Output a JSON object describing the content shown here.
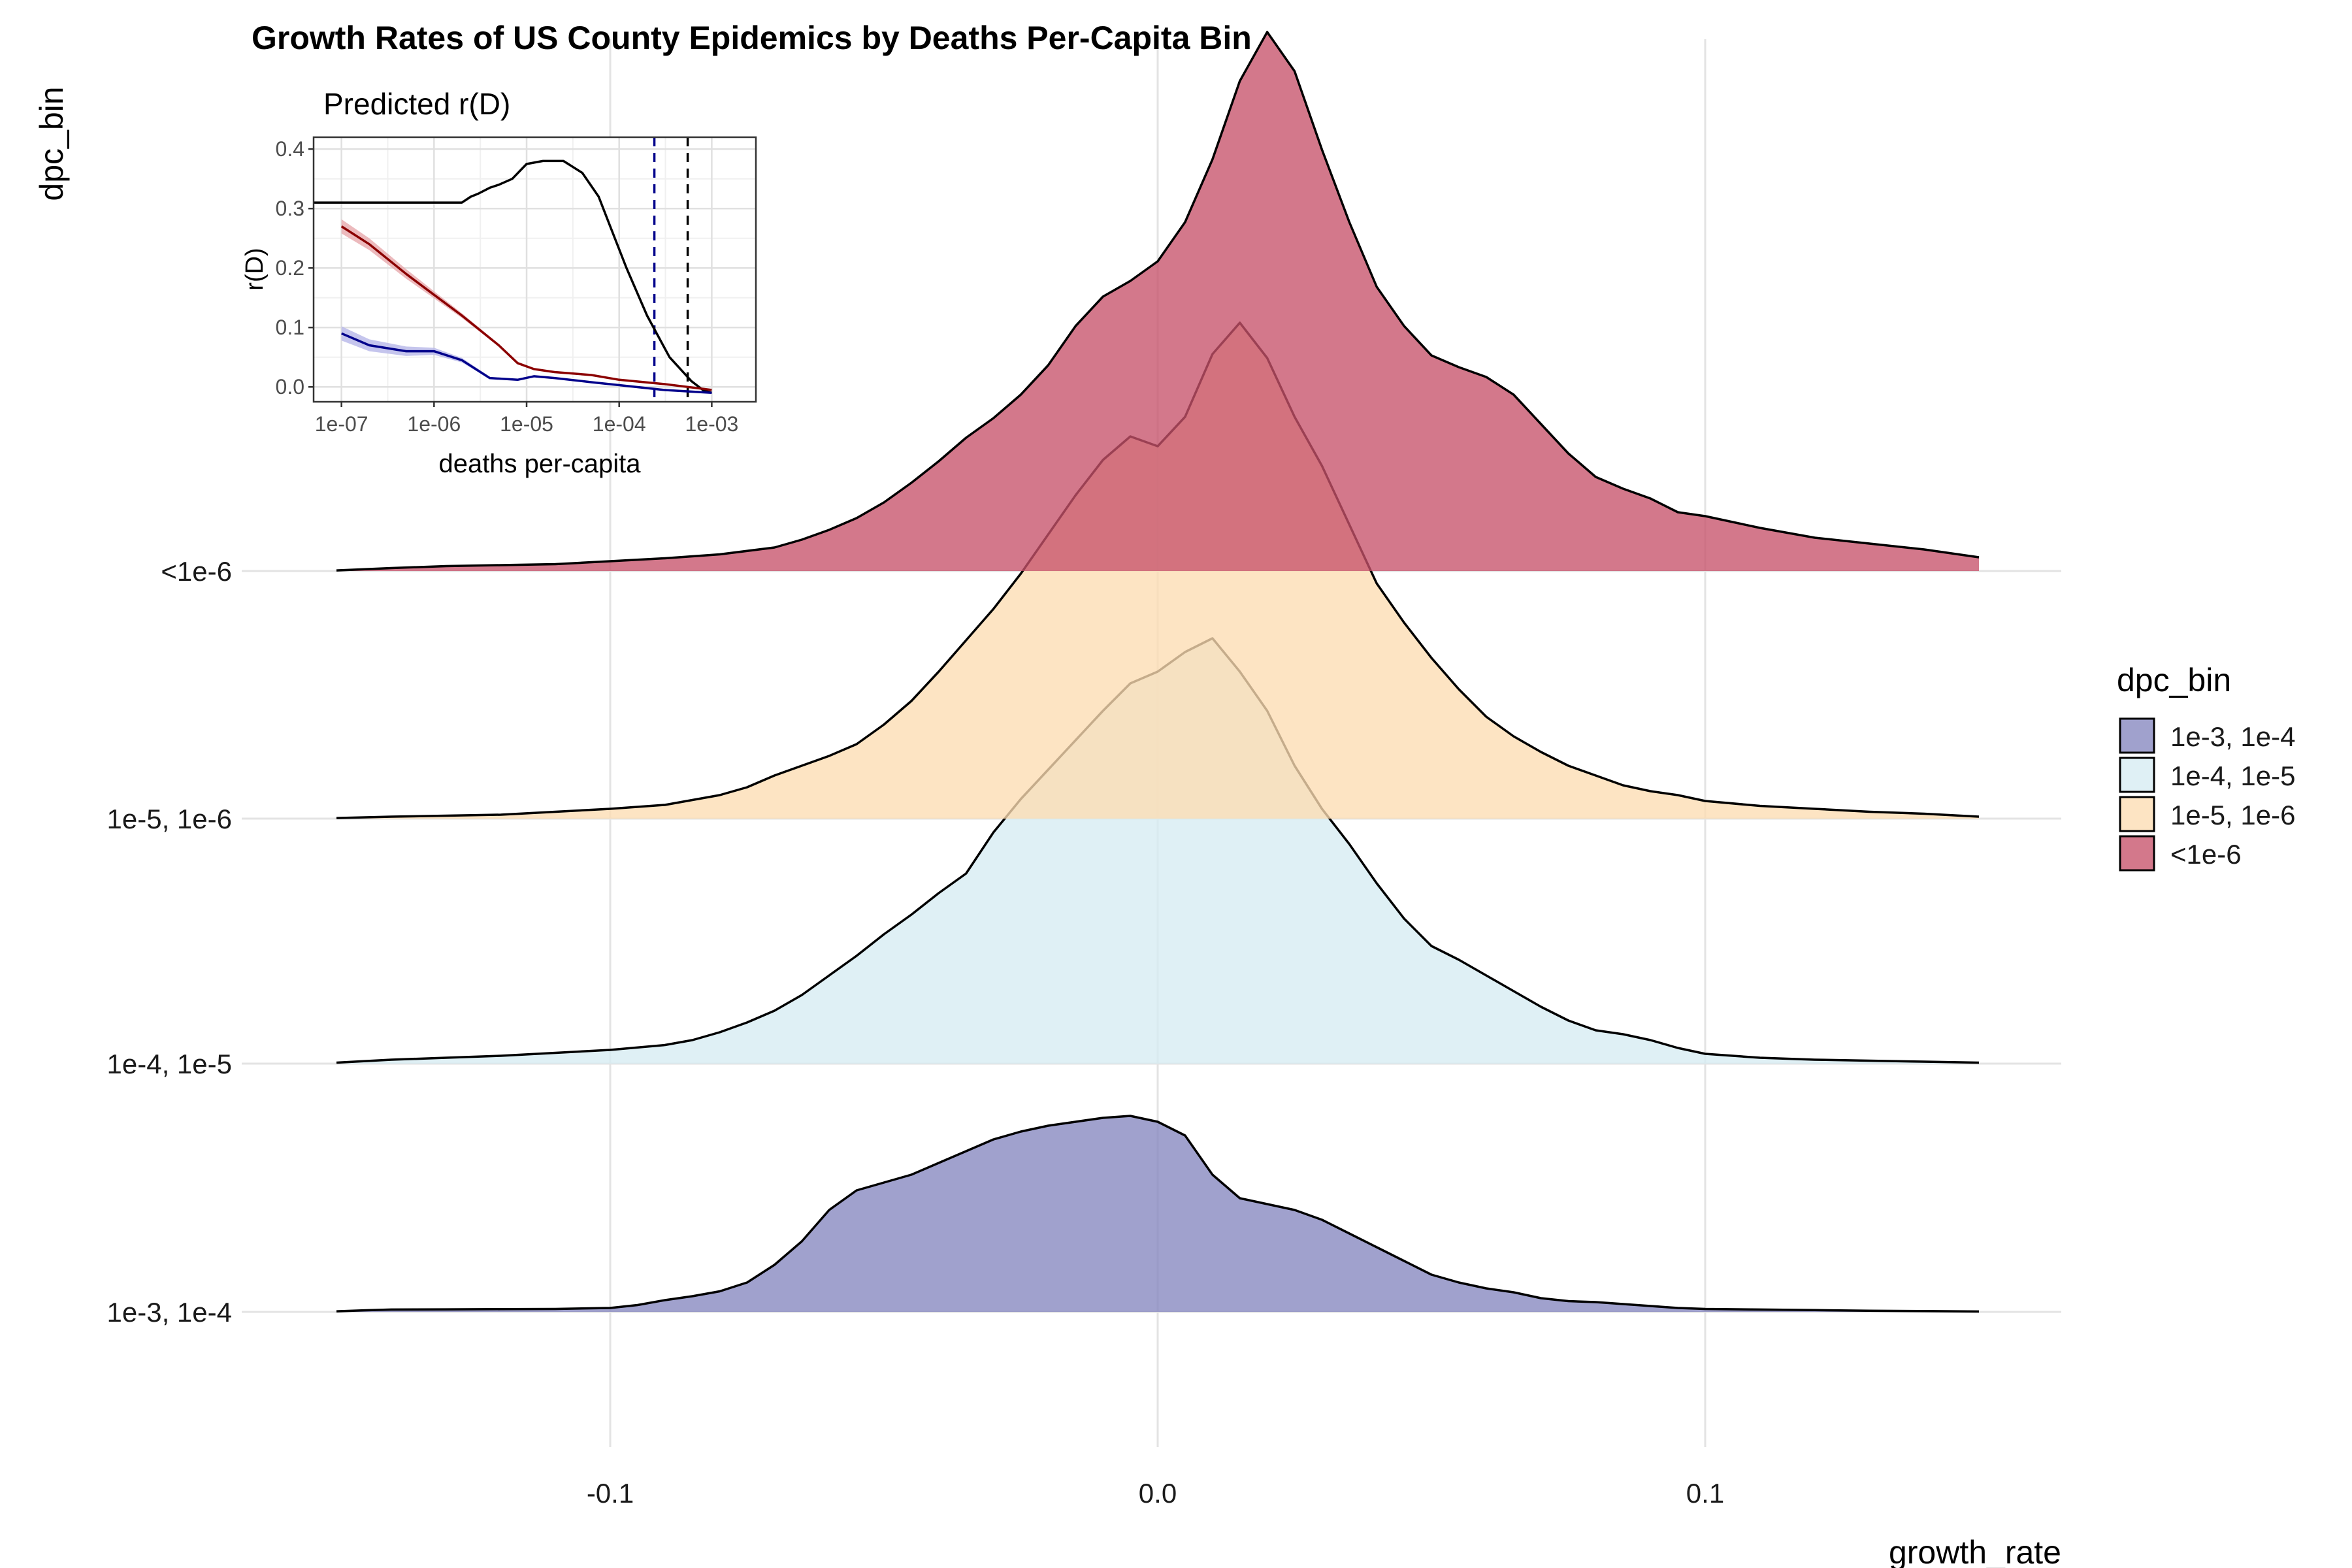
{
  "chart_data": [
    {
      "type": "ridgeline",
      "title": "Growth Rates of US County Epidemics by Deaths Per-Capita Bin",
      "xlabel": "growth_rate",
      "ylabel": "dpc_bin",
      "xlim": [
        -0.15,
        0.15
      ],
      "x_ticks": [
        {
          "value": -0.1,
          "label": "-0.1"
        },
        {
          "value": 0.0,
          "label": "0.0"
        },
        {
          "value": 0.1,
          "label": "0.1"
        }
      ],
      "grid": true,
      "legend": {
        "title": "dpc_bin",
        "placement": "right"
      },
      "series": [
        {
          "name": "1e-3, 1e-4",
          "color": "#8587bf",
          "x": [
            -0.15,
            -0.145,
            -0.14,
            -0.13,
            -0.12,
            -0.11,
            -0.1,
            -0.095,
            -0.09,
            -0.085,
            -0.08,
            -0.075,
            -0.07,
            -0.065,
            -0.06,
            -0.055,
            -0.05,
            -0.045,
            -0.04,
            -0.035,
            -0.03,
            -0.025,
            -0.02,
            -0.015,
            -0.01,
            -0.005,
            0.0,
            0.005,
            0.01,
            0.015,
            0.02,
            0.025,
            0.03,
            0.035,
            0.04,
            0.045,
            0.05,
            0.055,
            0.06,
            0.065,
            0.07,
            0.075,
            0.08,
            0.085,
            0.09,
            0.095,
            0.1,
            0.11,
            0.12,
            0.13,
            0.14,
            0.15
          ],
          "density": [
            0.3,
            0.8,
            1.2,
            1.3,
            1.4,
            1.5,
            2.0,
            3.5,
            6.0,
            8.0,
            10.5,
            15.0,
            24.0,
            36.0,
            52.0,
            62.0,
            66.0,
            70.0,
            76.0,
            82.0,
            88.0,
            92.0,
            95.0,
            97.0,
            99.0,
            100.0,
            97.0,
            90.0,
            70.0,
            58.0,
            55.0,
            52.0,
            47.0,
            40.0,
            33.0,
            26.0,
            19.0,
            15.0,
            12.0,
            10.0,
            7.0,
            5.5,
            5.0,
            4.0,
            3.0,
            2.0,
            1.5,
            1.2,
            0.9,
            0.6,
            0.4,
            0.2
          ]
        },
        {
          "name": "1e-4, 1e-5",
          "color": "#d6ecf2",
          "x": [
            -0.15,
            -0.14,
            -0.13,
            -0.12,
            -0.11,
            -0.1,
            -0.09,
            -0.085,
            -0.08,
            -0.075,
            -0.07,
            -0.065,
            -0.06,
            -0.055,
            -0.05,
            -0.045,
            -0.04,
            -0.035,
            -0.03,
            -0.025,
            -0.02,
            -0.015,
            -0.01,
            -0.005,
            0.0,
            0.005,
            0.01,
            0.015,
            0.02,
            0.025,
            0.03,
            0.035,
            0.04,
            0.045,
            0.05,
            0.055,
            0.06,
            0.065,
            0.07,
            0.075,
            0.08,
            0.085,
            0.09,
            0.095,
            0.1,
            0.11,
            0.12,
            0.13,
            0.14,
            0.15
          ],
          "density": [
            0.5,
            2.0,
            3.0,
            4.0,
            5.5,
            7.0,
            9.5,
            12.0,
            16.0,
            21.0,
            27.0,
            35.0,
            45.0,
            55.0,
            66.0,
            76.0,
            87.0,
            97.0,
            118.0,
            135.0,
            150.0,
            165.0,
            180.0,
            194.0,
            200.0,
            210.0,
            217.0,
            200.0,
            180.0,
            152.0,
            130.0,
            112.0,
            92.0,
            74.0,
            60.0,
            53.0,
            45.0,
            37.0,
            29.0,
            22.0,
            17.0,
            15.0,
            12.0,
            8.0,
            5.0,
            3.0,
            2.0,
            1.5,
            1.0,
            0.5
          ]
        },
        {
          "name": "1e-5, 1e-6",
          "color": "#fcddb2",
          "x": [
            -0.15,
            -0.14,
            -0.13,
            -0.12,
            -0.11,
            -0.1,
            -0.09,
            -0.08,
            -0.075,
            -0.07,
            -0.065,
            -0.06,
            -0.055,
            -0.05,
            -0.045,
            -0.04,
            -0.035,
            -0.03,
            -0.025,
            -0.02,
            -0.015,
            -0.01,
            -0.005,
            0.0,
            0.005,
            0.01,
            0.015,
            0.02,
            0.025,
            0.03,
            0.035,
            0.04,
            0.045,
            0.05,
            0.055,
            0.06,
            0.065,
            0.07,
            0.075,
            0.08,
            0.085,
            0.09,
            0.095,
            0.1,
            0.11,
            0.12,
            0.13,
            0.14,
            0.15
          ],
          "density": [
            0.3,
            1.0,
            1.5,
            2.0,
            3.5,
            5.0,
            7.0,
            12.0,
            16.0,
            22.0,
            27.0,
            32.0,
            38.0,
            48.0,
            60.0,
            75.0,
            91.0,
            107.0,
            125.0,
            145.0,
            165.0,
            183.0,
            195.0,
            190.0,
            205.0,
            237.0,
            253.0,
            235.0,
            205.0,
            180.0,
            150.0,
            120.0,
            100.0,
            82.0,
            66.0,
            52.0,
            42.0,
            34.0,
            27.0,
            22.0,
            17.0,
            14.0,
            12.0,
            9.0,
            6.5,
            5.0,
            3.5,
            2.5,
            1.0
          ]
        },
        {
          "name": "<1e-6",
          "color": "#c7526a",
          "x": [
            -0.15,
            -0.14,
            -0.13,
            -0.12,
            -0.11,
            -0.1,
            -0.09,
            -0.08,
            -0.07,
            -0.065,
            -0.06,
            -0.055,
            -0.05,
            -0.045,
            -0.04,
            -0.035,
            -0.03,
            -0.025,
            -0.02,
            -0.015,
            -0.01,
            -0.005,
            0.0,
            0.005,
            0.01,
            0.015,
            0.02,
            0.025,
            0.03,
            0.035,
            0.04,
            0.045,
            0.05,
            0.055,
            0.06,
            0.065,
            0.07,
            0.075,
            0.08,
            0.085,
            0.09,
            0.095,
            0.1,
            0.11,
            0.12,
            0.13,
            0.14,
            0.15
          ],
          "density": [
            0.3,
            1.5,
            2.5,
            3.0,
            3.5,
            5.0,
            6.5,
            8.5,
            12.0,
            16.0,
            21.0,
            27.0,
            35.0,
            45.0,
            56.0,
            68.0,
            78.0,
            90.0,
            105.0,
            125.0,
            140.0,
            148.0,
            158.0,
            178.0,
            210.0,
            250.0,
            275.0,
            255.0,
            215.0,
            178.0,
            145.0,
            125.0,
            110.0,
            104.0,
            99.0,
            90.0,
            75.0,
            60.0,
            48.0,
            42.0,
            37.0,
            30.0,
            28.0,
            22.0,
            17.0,
            14.0,
            11.0,
            7.0
          ]
        }
      ]
    },
    {
      "type": "line",
      "title": "Predicted r(D)",
      "xlabel": "deaths per-capita",
      "ylabel": "r(D)",
      "x_scale": "log",
      "xlim": [
        5e-08,
        0.003
      ],
      "ylim": [
        -0.025,
        0.42
      ],
      "x_ticks": [
        {
          "value": 1e-07,
          "label": "1e-07"
        },
        {
          "value": 1e-06,
          "label": "1e-06"
        },
        {
          "value": 1e-05,
          "label": "1e-05"
        },
        {
          "value": 0.0001,
          "label": "1e-04"
        },
        {
          "value": 0.001,
          "label": "1e-03"
        }
      ],
      "y_ticks": [
        {
          "value": 0.0,
          "label": "0.0"
        },
        {
          "value": 0.1,
          "label": "0.1"
        },
        {
          "value": 0.2,
          "label": "0.2"
        },
        {
          "value": 0.3,
          "label": "0.3"
        },
        {
          "value": 0.4,
          "label": "0.4"
        }
      ],
      "grid": true,
      "vlines": [
        {
          "x": 0.00024,
          "color": "#00008b",
          "style": "dashed"
        },
        {
          "x": 0.00055,
          "color": "#000000",
          "style": "dashed"
        }
      ],
      "series": [
        {
          "color": "#000000",
          "x": [
            5e-08,
            1e-07,
            5e-07,
            1e-06,
            2e-06,
            2.5e-06,
            3e-06,
            4e-06,
            5e-06,
            7e-06,
            1e-05,
            1.5e-05,
            2.5e-05,
            4e-05,
            6e-05,
            8e-05,
            0.00012,
            0.0002,
            0.00035,
            0.0006,
            0.0008,
            0.001
          ],
          "y": [
            0.31,
            0.31,
            0.31,
            0.31,
            0.31,
            0.32,
            0.325,
            0.335,
            0.34,
            0.35,
            0.375,
            0.38,
            0.38,
            0.36,
            0.32,
            0.27,
            0.2,
            0.12,
            0.05,
            0.01,
            -0.005,
            -0.01
          ]
        },
        {
          "color": "#8b0000",
          "x": [
            1e-07,
            2e-07,
            5e-07,
            1e-06,
            2e-06,
            5e-06,
            8e-06,
            1.2e-05,
            2e-05,
            5e-05,
            0.0001,
            0.0003,
            0.001
          ],
          "y": [
            0.27,
            0.24,
            0.19,
            0.155,
            0.12,
            0.07,
            0.04,
            0.03,
            0.025,
            0.02,
            0.012,
            0.005,
            -0.005
          ]
        },
        {
          "color": "#00008b",
          "x": [
            1e-07,
            2e-07,
            5e-07,
            1e-06,
            2e-06,
            4e-06,
            8e-06,
            1.2e-05,
            2e-05,
            5e-05,
            0.0001,
            0.0003,
            0.001
          ],
          "y": [
            0.09,
            0.07,
            0.06,
            0.06,
            0.045,
            0.015,
            0.012,
            0.018,
            0.015,
            0.008,
            0.003,
            -0.005,
            -0.01
          ]
        }
      ]
    }
  ]
}
